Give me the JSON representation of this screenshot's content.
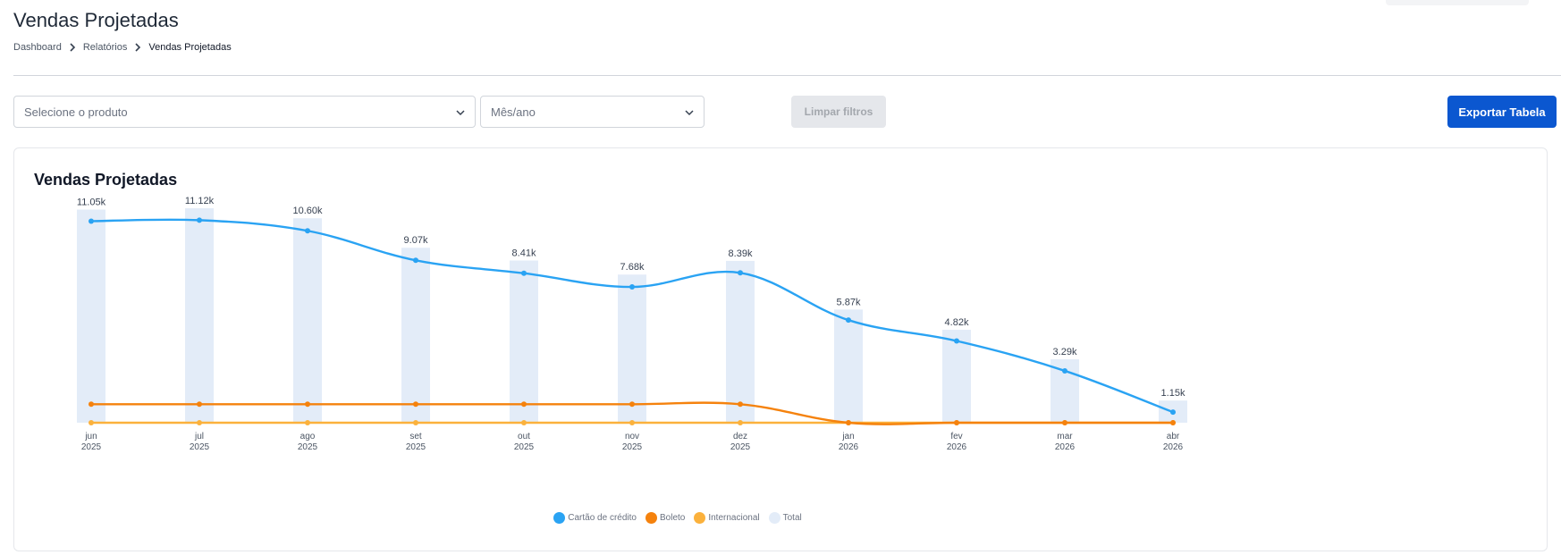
{
  "page": {
    "title": "Vendas Projetadas"
  },
  "breadcrumb": [
    {
      "label": "Dashboard"
    },
    {
      "label": "Relatórios"
    },
    {
      "label": "Vendas Projetadas"
    }
  ],
  "filters": {
    "product_placeholder": "Selecione o produto",
    "month_placeholder": "Mês/ano",
    "clear_label": "Limpar filtros",
    "export_label": "Exportar Tabela"
  },
  "card": {
    "title": "Vendas Projetadas"
  },
  "colors": {
    "cartao": "#2aa3f3",
    "boleto": "#f5820d",
    "internacional": "#fbb13c",
    "total": "#e3ecf8",
    "primary": "#0b57d0"
  },
  "chart_data": {
    "type": "line",
    "x": [
      [
        "jun",
        "2025"
      ],
      [
        "jul",
        "2025"
      ],
      [
        "ago",
        "2025"
      ],
      [
        "set",
        "2025"
      ],
      [
        "out",
        "2025"
      ],
      [
        "nov",
        "2025"
      ],
      [
        "dez",
        "2025"
      ],
      [
        "jan",
        "2026"
      ],
      [
        "fev",
        "2026"
      ],
      [
        "mar",
        "2026"
      ],
      [
        "abr",
        "2026"
      ]
    ],
    "ylim": [
      0,
      11120
    ],
    "series": [
      {
        "name": "Cartão de crédito",
        "type": "line",
        "color": "#2aa3f3",
        "values": [
          10450,
          10500,
          9950,
          8420,
          7750,
          7040,
          7770,
          5320,
          4240,
          2690,
          550
        ]
      },
      {
        "name": "Boleto",
        "type": "line",
        "color": "#f5820d",
        "values": [
          960,
          960,
          960,
          960,
          960,
          960,
          960,
          0,
          0,
          0,
          0
        ]
      },
      {
        "name": "Internacional",
        "type": "line",
        "color": "#fbb13c",
        "values": [
          0,
          0,
          0,
          0,
          0,
          0,
          0,
          0,
          0,
          0,
          0
        ]
      },
      {
        "name": "Total",
        "type": "bar",
        "color": "#e3ecf8",
        "values": [
          11050,
          11120,
          10600,
          9070,
          8410,
          7680,
          8390,
          5870,
          4820,
          3290,
          1150
        ]
      }
    ],
    "data_labels": [
      "11.05k",
      "11.12k",
      "10.60k",
      "9.07k",
      "8.41k",
      "7.68k",
      "8.39k",
      "5.87k",
      "4.82k",
      "3.29k",
      "1.15k"
    ],
    "legend_position": "bottom",
    "grid": false
  }
}
